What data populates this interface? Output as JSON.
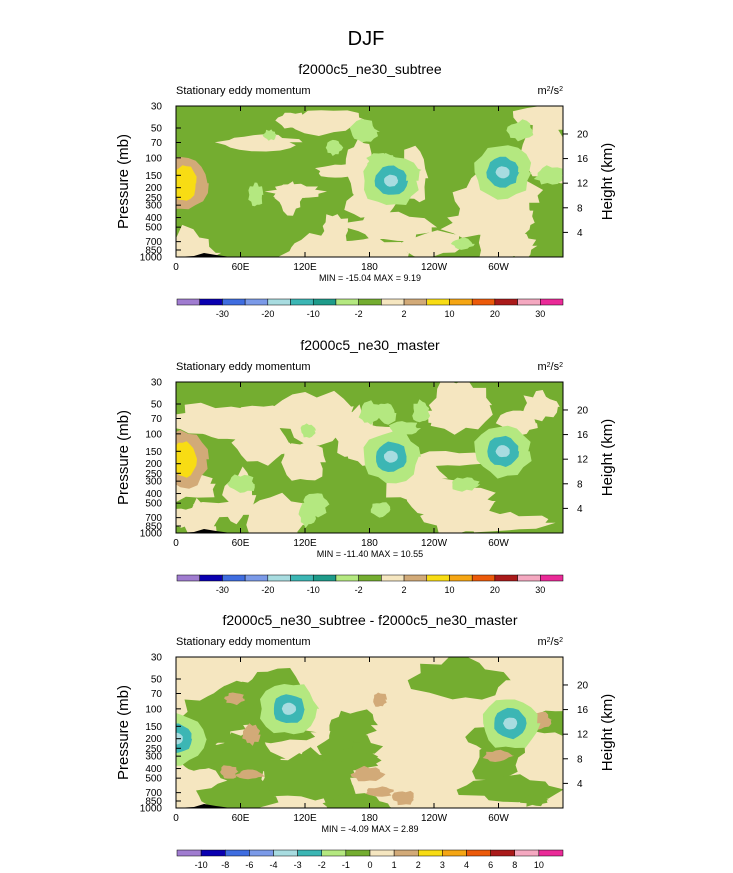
{
  "figure_title": "DJF",
  "colors": {
    "diff_fill": "#74ad30",
    "diff_fill_light": "#9ccb58",
    "neutral": "#f5e6c0",
    "topo": "#000000"
  },
  "chart_data": [
    {
      "type": "heatmap",
      "title": "f2000c5_ne30_subtree",
      "left_label": "Stationary eddy momentum",
      "units": "m²/s²",
      "units_base": "m",
      "units_sup1": "2",
      "units_mid": "/s",
      "units_sup2": "2",
      "ylabel": "Pressure (mb)",
      "ylabel_right": "Height (km)",
      "x_ticks": [
        "0",
        "60E",
        "120E",
        "180",
        "120W",
        "60W"
      ],
      "x_tick_values": [
        0,
        60,
        120,
        180,
        240,
        300
      ],
      "xlim": [
        0,
        360
      ],
      "y_ticks": [
        "30",
        "50",
        "70",
        "100",
        "150",
        "200",
        "250",
        "300",
        "400",
        "500",
        "700",
        "850",
        "1000"
      ],
      "y_tick_values": [
        30,
        50,
        70,
        100,
        150,
        200,
        250,
        300,
        400,
        500,
        700,
        850,
        1000
      ],
      "ylim": [
        1000,
        30
      ],
      "height_ticks": [
        "20",
        "16",
        "12",
        "8",
        "4"
      ],
      "height_tick_values": [
        20,
        16,
        12,
        8,
        4
      ],
      "minmax_label": "MIN = -15.04  MAX =  9.19",
      "min": -15.04,
      "max": 9.19,
      "colorbar_labels": [
        "-30",
        "-20",
        "-10",
        "-2",
        "2",
        "10",
        "20",
        "30"
      ],
      "colorbar_colors": [
        "#a07cd0",
        "#0a00b0",
        "#3f6de0",
        "#7b9ae8",
        "#a8dce0",
        "#3cb6b4",
        "#1e9b8a",
        "#b4e880",
        "#74ad30",
        "#f5e6c0",
        "#d2aa78",
        "#f8dc14",
        "#f5a614",
        "#ec5a0a",
        "#aa1a1a",
        "#f4a8c0",
        "#ea2a98"
      ],
      "features": [
        {
          "label": "negative core",
          "lon": 304,
          "p": 140,
          "level": "-10 to -2"
        },
        {
          "label": "negative blob",
          "lon": 200,
          "p": 170,
          "level": "-2"
        },
        {
          "label": "positive core",
          "lon": 8,
          "p": 180,
          "level": "2 to 10"
        }
      ]
    },
    {
      "type": "heatmap",
      "title": "f2000c5_ne30_master",
      "left_label": "Stationary eddy momentum",
      "units": "m²/s²",
      "units_base": "m",
      "units_sup1": "2",
      "units_mid": "/s",
      "units_sup2": "2",
      "ylabel": "Pressure (mb)",
      "ylabel_right": "Height (km)",
      "x_ticks": [
        "0",
        "60E",
        "120E",
        "180",
        "120W",
        "60W"
      ],
      "x_tick_values": [
        0,
        60,
        120,
        180,
        240,
        300
      ],
      "xlim": [
        0,
        360
      ],
      "y_ticks": [
        "30",
        "50",
        "70",
        "100",
        "150",
        "200",
        "250",
        "300",
        "400",
        "500",
        "700",
        "850",
        "1000"
      ],
      "y_tick_values": [
        30,
        50,
        70,
        100,
        150,
        200,
        250,
        300,
        400,
        500,
        700,
        850,
        1000
      ],
      "ylim": [
        1000,
        30
      ],
      "height_ticks": [
        "20",
        "16",
        "12",
        "8",
        "4"
      ],
      "height_tick_values": [
        20,
        16,
        12,
        8,
        4
      ],
      "minmax_label": "MIN = -11.40  MAX = 10.55",
      "min": -11.4,
      "max": 10.55,
      "colorbar_labels": [
        "-30",
        "-20",
        "-10",
        "-2",
        "2",
        "10",
        "20",
        "30"
      ],
      "colorbar_colors": [
        "#a07cd0",
        "#0a00b0",
        "#3f6de0",
        "#7b9ae8",
        "#a8dce0",
        "#3cb6b4",
        "#1e9b8a",
        "#b4e880",
        "#74ad30",
        "#f5e6c0",
        "#d2aa78",
        "#f8dc14",
        "#f5a614",
        "#ec5a0a",
        "#aa1a1a",
        "#f4a8c0",
        "#ea2a98"
      ],
      "features": [
        {
          "label": "negative core",
          "lon": 304,
          "p": 150,
          "level": "-10 to -2"
        },
        {
          "label": "negative blob",
          "lon": 200,
          "p": 170,
          "level": "-2"
        },
        {
          "label": "positive core",
          "lon": 8,
          "p": 180,
          "level": "2 to 10"
        }
      ]
    },
    {
      "type": "heatmap",
      "title": "f2000c5_ne30_subtree - f2000c5_ne30_master",
      "left_label": "Stationary eddy momentum",
      "units": "m²/s²",
      "units_base": "m",
      "units_sup1": "2",
      "units_mid": "/s",
      "units_sup2": "2",
      "ylabel": "Pressure (mb)",
      "ylabel_right": "Height (km)",
      "x_ticks": [
        "0",
        "60E",
        "120E",
        "180",
        "120W",
        "60W"
      ],
      "x_tick_values": [
        0,
        60,
        120,
        180,
        240,
        300
      ],
      "xlim": [
        0,
        360
      ],
      "y_ticks": [
        "30",
        "50",
        "70",
        "100",
        "150",
        "200",
        "250",
        "300",
        "400",
        "500",
        "700",
        "850",
        "1000"
      ],
      "y_tick_values": [
        30,
        50,
        70,
        100,
        150,
        200,
        250,
        300,
        400,
        500,
        700,
        850,
        1000
      ],
      "ylim": [
        1000,
        30
      ],
      "height_ticks": [
        "20",
        "16",
        "12",
        "8",
        "4"
      ],
      "height_tick_values": [
        20,
        16,
        12,
        8,
        4
      ],
      "minmax_label": "MIN = -4.09  MAX =  2.89",
      "min": -4.09,
      "max": 2.89,
      "colorbar_labels": [
        "-10",
        "-8",
        "-6",
        "-4",
        "-3",
        "-2",
        "-1",
        "0",
        "1",
        "2",
        "3",
        "4",
        "6",
        "8",
        "10"
      ],
      "colorbar_colors": [
        "#a07cd0",
        "#0a00b0",
        "#3f6de0",
        "#7b9ae8",
        "#a8dce0",
        "#3cb6b4",
        "#b4e880",
        "#74ad30",
        "#f5e6c0",
        "#d2aa78",
        "#f8dc14",
        "#f5a614",
        "#ec5a0a",
        "#aa1a1a",
        "#f4a8c0",
        "#ea2a98"
      ],
      "features": [
        {
          "label": "negative core",
          "lon": 0,
          "p": 200,
          "level": "-3 to -2"
        },
        {
          "label": "negative core",
          "lon": 311,
          "p": 140,
          "level": "-3 to -2"
        },
        {
          "label": "negative blob",
          "lon": 105,
          "p": 100,
          "level": "-3 to -1"
        }
      ]
    }
  ]
}
